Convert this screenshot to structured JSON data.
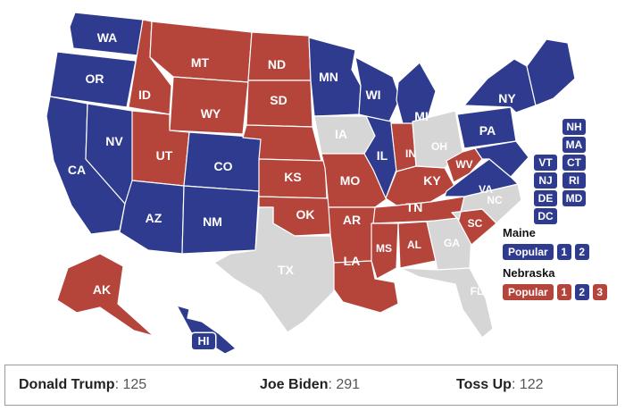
{
  "colors": {
    "biden": "#2e3b8f",
    "trump": "#b5443b",
    "tossup": "#d6d6d6"
  },
  "states": [
    {
      "code": "WA",
      "label": "WA",
      "party": "biden"
    },
    {
      "code": "OR",
      "label": "OR",
      "party": "biden"
    },
    {
      "code": "CA",
      "label": "CA",
      "party": "biden"
    },
    {
      "code": "NV",
      "label": "NV",
      "party": "biden"
    },
    {
      "code": "ID",
      "label": "ID",
      "party": "trump"
    },
    {
      "code": "MT",
      "label": "MT",
      "party": "trump"
    },
    {
      "code": "WY",
      "label": "WY",
      "party": "trump"
    },
    {
      "code": "UT",
      "label": "UT",
      "party": "trump"
    },
    {
      "code": "AZ",
      "label": "AZ",
      "party": "biden"
    },
    {
      "code": "CO",
      "label": "CO",
      "party": "biden"
    },
    {
      "code": "NM",
      "label": "NM",
      "party": "biden"
    },
    {
      "code": "ND",
      "label": "ND",
      "party": "trump"
    },
    {
      "code": "SD",
      "label": "SD",
      "party": "trump"
    },
    {
      "code": "NE",
      "label": "",
      "party": "trump"
    },
    {
      "code": "KS",
      "label": "KS",
      "party": "trump"
    },
    {
      "code": "OK",
      "label": "OK",
      "party": "trump"
    },
    {
      "code": "TX",
      "label": "TX",
      "party": "tossup"
    },
    {
      "code": "MN",
      "label": "MN",
      "party": "biden"
    },
    {
      "code": "IA",
      "label": "IA",
      "party": "tossup"
    },
    {
      "code": "MO",
      "label": "MO",
      "party": "trump"
    },
    {
      "code": "AR",
      "label": "AR",
      "party": "trump"
    },
    {
      "code": "LA",
      "label": "LA",
      "party": "trump"
    },
    {
      "code": "WI",
      "label": "WI",
      "party": "biden"
    },
    {
      "code": "IL",
      "label": "IL",
      "party": "biden"
    },
    {
      "code": "MI",
      "label": "MI",
      "party": "biden"
    },
    {
      "code": "IN",
      "label": "IN",
      "party": "trump"
    },
    {
      "code": "OH",
      "label": "OH",
      "party": "tossup"
    },
    {
      "code": "KY",
      "label": "KY",
      "party": "trump"
    },
    {
      "code": "TN",
      "label": "TN",
      "party": "trump"
    },
    {
      "code": "MS",
      "label": "MS",
      "party": "trump"
    },
    {
      "code": "AL",
      "label": "AL",
      "party": "trump"
    },
    {
      "code": "GA",
      "label": "GA",
      "party": "tossup"
    },
    {
      "code": "FL",
      "label": "FL",
      "party": "tossup"
    },
    {
      "code": "SC",
      "label": "SC",
      "party": "trump"
    },
    {
      "code": "NC",
      "label": "NC",
      "party": "tossup"
    },
    {
      "code": "VA",
      "label": "VA",
      "party": "biden"
    },
    {
      "code": "WV",
      "label": "WV",
      "party": "trump"
    },
    {
      "code": "PA",
      "label": "PA",
      "party": "biden"
    },
    {
      "code": "NY",
      "label": "NY",
      "party": "biden"
    },
    {
      "code": "NE_REGION",
      "label": "",
      "party": "biden"
    },
    {
      "code": "MD",
      "label": "",
      "party": "biden"
    },
    {
      "code": "AK",
      "label": "AK",
      "party": "trump"
    },
    {
      "code": "HI",
      "label": "HI",
      "party": "biden"
    }
  ],
  "small_states": [
    {
      "label": "NH",
      "party": "biden"
    },
    {
      "label": "MA",
      "party": "biden"
    },
    {
      "label": "VT",
      "party": "biden"
    },
    {
      "label": "CT",
      "party": "biden"
    },
    {
      "label": "NJ",
      "party": "biden"
    },
    {
      "label": "RI",
      "party": "biden"
    },
    {
      "label": "DE",
      "party": "biden"
    },
    {
      "label": "MD",
      "party": "biden"
    },
    {
      "label": "DC",
      "party": "biden"
    }
  ],
  "hawaii_chip": {
    "label": "HI",
    "party": "biden"
  },
  "maine": {
    "title": "Maine",
    "popular": "Popular",
    "popular_party": "biden",
    "districts": [
      {
        "label": "1",
        "party": "biden"
      },
      {
        "label": "2",
        "party": "biden"
      }
    ]
  },
  "nebraska": {
    "title": "Nebraska",
    "popular": "Popular",
    "popular_party": "trump",
    "districts": [
      {
        "label": "1",
        "party": "trump"
      },
      {
        "label": "2",
        "party": "biden"
      },
      {
        "label": "3",
        "party": "trump"
      }
    ]
  },
  "totals": [
    {
      "name": "Donald Trump",
      "value": ": 125"
    },
    {
      "name": "Joe Biden",
      "value": ": 291"
    },
    {
      "name": "Toss Up",
      "value": ": 122"
    }
  ]
}
